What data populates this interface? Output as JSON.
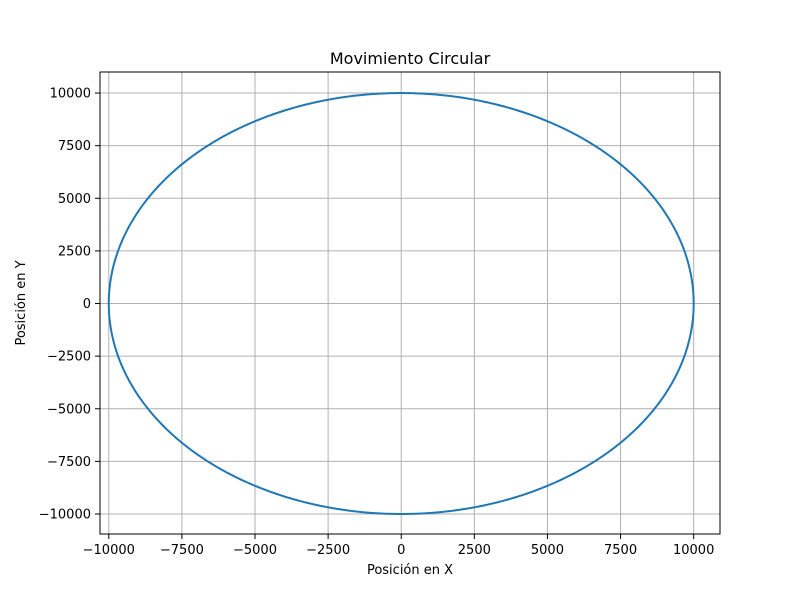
{
  "chart_data": {
    "type": "line",
    "title": "Movimiento Circular",
    "xlabel": "Posición en X",
    "ylabel": "Posición en Y",
    "xlim": [
      -10300,
      10900
    ],
    "ylim": [
      -10950,
      11000
    ],
    "xticks": [
      -10000,
      -7500,
      -5000,
      -2500,
      0,
      2500,
      5000,
      7500,
      10000
    ],
    "yticks": [
      -10000,
      -7500,
      -5000,
      -2500,
      0,
      2500,
      5000,
      7500,
      10000
    ],
    "xtick_labels": [
      "−10000",
      "−7500",
      "−5000",
      "−2500",
      "0",
      "2500",
      "5000",
      "7500",
      "10000"
    ],
    "ytick_labels": [
      "−10000",
      "−7500",
      "−5000",
      "−2500",
      "0",
      "2500",
      "5000",
      "7500",
      "10000"
    ],
    "grid": true,
    "series": [
      {
        "color": "#1f77b4",
        "shape": "circle",
        "center": [
          0,
          0
        ],
        "radius": 10000,
        "angle_range_deg": [
          0,
          360
        ]
      }
    ]
  }
}
